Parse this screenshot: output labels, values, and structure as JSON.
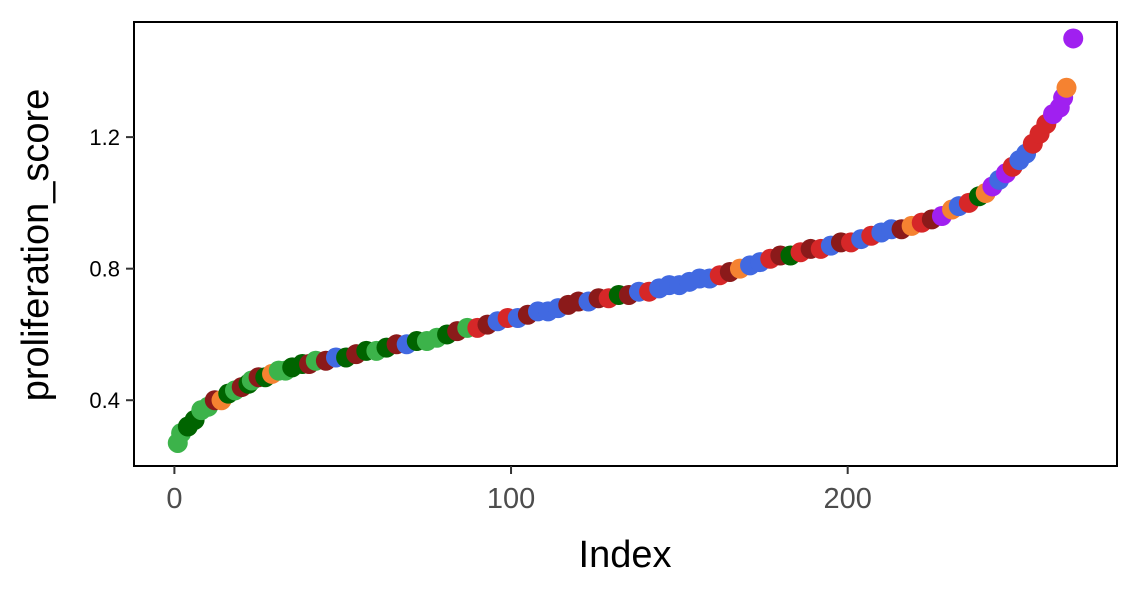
{
  "chart_data": {
    "type": "scatter",
    "xlabel": "Index",
    "ylabel": "proliferation_score",
    "xlim": [
      -12,
      280
    ],
    "ylim": [
      0.2,
      1.55
    ],
    "x_ticks": [
      0,
      100,
      200
    ],
    "x_tick_labels": [
      "0",
      "100",
      "200"
    ],
    "y_ticks": [
      0.4,
      0.8,
      1.2
    ],
    "y_tick_labels": [
      "0.4",
      "0.8",
      "1.2"
    ],
    "grid": false,
    "legend": "none",
    "palette": [
      "#3CB34A",
      "#006400",
      "#8B1A1A",
      "#D62728",
      "#4169E1",
      "#F58231",
      "#A020F0"
    ],
    "points": [
      {
        "x": 1,
        "y": 0.27,
        "c": 0
      },
      {
        "x": 2,
        "y": 0.3,
        "c": 0
      },
      {
        "x": 4,
        "y": 0.32,
        "c": 1
      },
      {
        "x": 6,
        "y": 0.34,
        "c": 1
      },
      {
        "x": 8,
        "y": 0.37,
        "c": 0
      },
      {
        "x": 10,
        "y": 0.38,
        "c": 0
      },
      {
        "x": 12,
        "y": 0.4,
        "c": 2
      },
      {
        "x": 14,
        "y": 0.4,
        "c": 5
      },
      {
        "x": 16,
        "y": 0.42,
        "c": 1
      },
      {
        "x": 18,
        "y": 0.43,
        "c": 0
      },
      {
        "x": 20,
        "y": 0.44,
        "c": 2
      },
      {
        "x": 22,
        "y": 0.45,
        "c": 1
      },
      {
        "x": 23,
        "y": 0.46,
        "c": 0
      },
      {
        "x": 25,
        "y": 0.47,
        "c": 2
      },
      {
        "x": 27,
        "y": 0.47,
        "c": 1
      },
      {
        "x": 29,
        "y": 0.48,
        "c": 5
      },
      {
        "x": 31,
        "y": 0.49,
        "c": 0
      },
      {
        "x": 33,
        "y": 0.49,
        "c": 0
      },
      {
        "x": 35,
        "y": 0.5,
        "c": 1
      },
      {
        "x": 38,
        "y": 0.51,
        "c": 1
      },
      {
        "x": 40,
        "y": 0.51,
        "c": 2
      },
      {
        "x": 42,
        "y": 0.52,
        "c": 0
      },
      {
        "x": 45,
        "y": 0.52,
        "c": 2
      },
      {
        "x": 48,
        "y": 0.53,
        "c": 4
      },
      {
        "x": 51,
        "y": 0.53,
        "c": 1
      },
      {
        "x": 54,
        "y": 0.54,
        "c": 2
      },
      {
        "x": 57,
        "y": 0.55,
        "c": 1
      },
      {
        "x": 60,
        "y": 0.55,
        "c": 0
      },
      {
        "x": 63,
        "y": 0.56,
        "c": 1
      },
      {
        "x": 66,
        "y": 0.57,
        "c": 2
      },
      {
        "x": 69,
        "y": 0.57,
        "c": 4
      },
      {
        "x": 72,
        "y": 0.58,
        "c": 1
      },
      {
        "x": 75,
        "y": 0.58,
        "c": 0
      },
      {
        "x": 78,
        "y": 0.59,
        "c": 0
      },
      {
        "x": 81,
        "y": 0.6,
        "c": 1
      },
      {
        "x": 84,
        "y": 0.61,
        "c": 2
      },
      {
        "x": 87,
        "y": 0.62,
        "c": 0
      },
      {
        "x": 90,
        "y": 0.62,
        "c": 3
      },
      {
        "x": 93,
        "y": 0.63,
        "c": 2
      },
      {
        "x": 96,
        "y": 0.64,
        "c": 4
      },
      {
        "x": 99,
        "y": 0.65,
        "c": 3
      },
      {
        "x": 102,
        "y": 0.65,
        "c": 4
      },
      {
        "x": 105,
        "y": 0.66,
        "c": 2
      },
      {
        "x": 108,
        "y": 0.67,
        "c": 4
      },
      {
        "x": 111,
        "y": 0.67,
        "c": 4
      },
      {
        "x": 114,
        "y": 0.68,
        "c": 4
      },
      {
        "x": 117,
        "y": 0.69,
        "c": 2
      },
      {
        "x": 120,
        "y": 0.7,
        "c": 2
      },
      {
        "x": 123,
        "y": 0.7,
        "c": 4
      },
      {
        "x": 126,
        "y": 0.71,
        "c": 2
      },
      {
        "x": 129,
        "y": 0.71,
        "c": 3
      },
      {
        "x": 132,
        "y": 0.72,
        "c": 1
      },
      {
        "x": 135,
        "y": 0.72,
        "c": 2
      },
      {
        "x": 138,
        "y": 0.73,
        "c": 4
      },
      {
        "x": 141,
        "y": 0.73,
        "c": 3
      },
      {
        "x": 144,
        "y": 0.74,
        "c": 4
      },
      {
        "x": 147,
        "y": 0.75,
        "c": 4
      },
      {
        "x": 150,
        "y": 0.75,
        "c": 4
      },
      {
        "x": 153,
        "y": 0.76,
        "c": 4
      },
      {
        "x": 156,
        "y": 0.77,
        "c": 4
      },
      {
        "x": 159,
        "y": 0.77,
        "c": 4
      },
      {
        "x": 162,
        "y": 0.78,
        "c": 3
      },
      {
        "x": 165,
        "y": 0.79,
        "c": 2
      },
      {
        "x": 168,
        "y": 0.8,
        "c": 5
      },
      {
        "x": 171,
        "y": 0.81,
        "c": 4
      },
      {
        "x": 174,
        "y": 0.82,
        "c": 4
      },
      {
        "x": 177,
        "y": 0.83,
        "c": 3
      },
      {
        "x": 180,
        "y": 0.84,
        "c": 2
      },
      {
        "x": 183,
        "y": 0.84,
        "c": 1
      },
      {
        "x": 186,
        "y": 0.85,
        "c": 3
      },
      {
        "x": 189,
        "y": 0.86,
        "c": 2
      },
      {
        "x": 192,
        "y": 0.86,
        "c": 3
      },
      {
        "x": 195,
        "y": 0.87,
        "c": 4
      },
      {
        "x": 198,
        "y": 0.88,
        "c": 2
      },
      {
        "x": 201,
        "y": 0.88,
        "c": 3
      },
      {
        "x": 204,
        "y": 0.89,
        "c": 4
      },
      {
        "x": 207,
        "y": 0.9,
        "c": 3
      },
      {
        "x": 210,
        "y": 0.91,
        "c": 4
      },
      {
        "x": 213,
        "y": 0.92,
        "c": 4
      },
      {
        "x": 216,
        "y": 0.92,
        "c": 2
      },
      {
        "x": 219,
        "y": 0.93,
        "c": 5
      },
      {
        "x": 222,
        "y": 0.94,
        "c": 3
      },
      {
        "x": 225,
        "y": 0.95,
        "c": 2
      },
      {
        "x": 228,
        "y": 0.96,
        "c": 6
      },
      {
        "x": 231,
        "y": 0.98,
        "c": 5
      },
      {
        "x": 233,
        "y": 0.99,
        "c": 4
      },
      {
        "x": 236,
        "y": 1.0,
        "c": 3
      },
      {
        "x": 239,
        "y": 1.02,
        "c": 1
      },
      {
        "x": 241,
        "y": 1.03,
        "c": 5
      },
      {
        "x": 243,
        "y": 1.05,
        "c": 6
      },
      {
        "x": 245,
        "y": 1.07,
        "c": 4
      },
      {
        "x": 247,
        "y": 1.09,
        "c": 6
      },
      {
        "x": 249,
        "y": 1.11,
        "c": 3
      },
      {
        "x": 251,
        "y": 1.13,
        "c": 4
      },
      {
        "x": 253,
        "y": 1.15,
        "c": 4
      },
      {
        "x": 255,
        "y": 1.18,
        "c": 3
      },
      {
        "x": 257,
        "y": 1.21,
        "c": 3
      },
      {
        "x": 259,
        "y": 1.24,
        "c": 3
      },
      {
        "x": 261,
        "y": 1.27,
        "c": 6
      },
      {
        "x": 263,
        "y": 1.29,
        "c": 6
      },
      {
        "x": 264,
        "y": 1.32,
        "c": 6
      },
      {
        "x": 265,
        "y": 1.35,
        "c": 5
      },
      {
        "x": 267,
        "y": 1.5,
        "c": 6
      }
    ]
  }
}
